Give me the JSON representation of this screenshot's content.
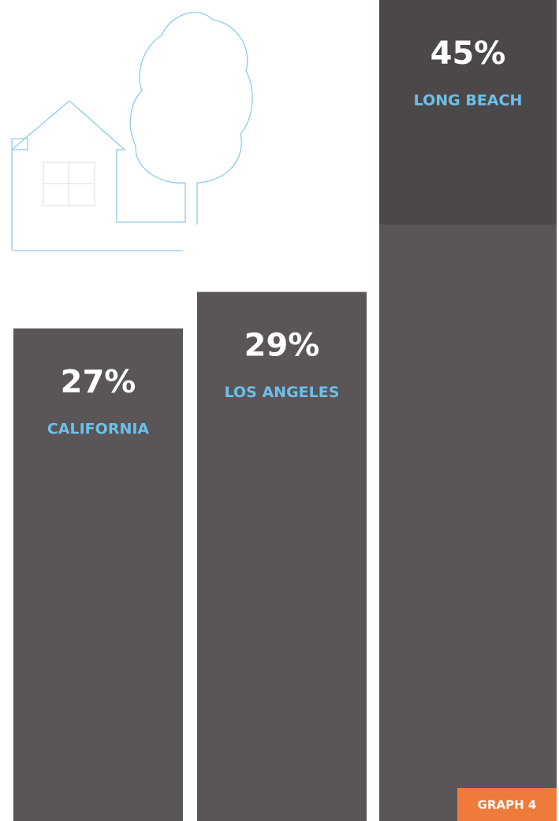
{
  "chart_data": {
    "type": "bar",
    "categories": [
      "CALIFORNIA",
      "LOS ANGELES",
      "LONG BEACH"
    ],
    "values": [
      27,
      29,
      45
    ],
    "value_labels": [
      "27%",
      "29%",
      "45%"
    ],
    "color": "#5a5556",
    "category_color": "#6cc0ea",
    "annotation": "GRAPH 4",
    "annotation_color": "#ef7b3b"
  }
}
